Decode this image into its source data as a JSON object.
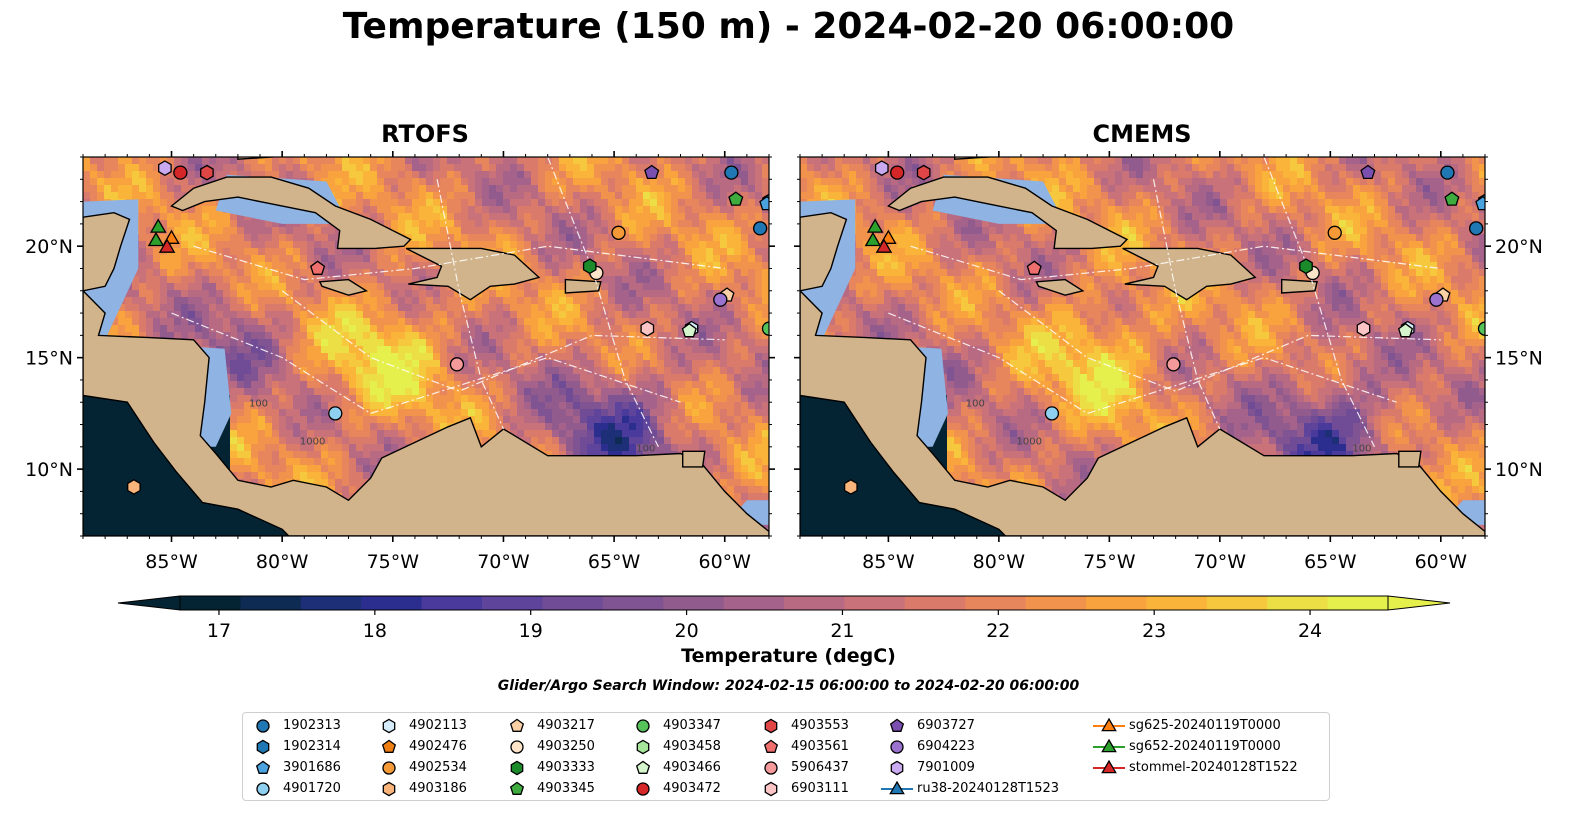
{
  "chart_data": {
    "type": "heatmap",
    "title": "Temperature (150 m) - 2024-02-20 06:00:00",
    "panels": [
      {
        "title": "RTOFS"
      },
      {
        "title": "CMEMS"
      }
    ],
    "x_ticks": [
      "85°W",
      "80°W",
      "75°W",
      "70°W",
      "65°W",
      "60°W"
    ],
    "x_tick_values": [
      -85,
      -80,
      -75,
      -70,
      -65,
      -60
    ],
    "y_ticks": [
      "20°N",
      "15°N",
      "10°N"
    ],
    "y_tick_values": [
      20,
      15,
      10
    ],
    "xlim": [
      -89,
      -58
    ],
    "ylim": [
      7,
      24
    ],
    "contour_labels": [
      "100",
      "1000",
      "100"
    ],
    "colorbar": {
      "label": "Temperature (degC)",
      "vmin": 16.75,
      "vmax": 24.5,
      "ticks": [
        17,
        18,
        19,
        20,
        21,
        22,
        23,
        24
      ],
      "colors": [
        "#052433",
        "#0e2b54",
        "#1d2f76",
        "#2b2e8e",
        "#4a3a9c",
        "#5e449a",
        "#704c96",
        "#805392",
        "#915b8e",
        "#a5628a",
        "#b86a83",
        "#c97279",
        "#d97a6b",
        "#e7855d",
        "#f2934d",
        "#f8a33e",
        "#fab43a",
        "#f6c83e",
        "#ecdf45",
        "#e6f04c"
      ],
      "extend": "both"
    },
    "search_window": "Glider/Argo Search Window: 2024-02-15 06:00:00 to 2024-02-20 06:00:00",
    "legend": [
      {
        "label": "1902313",
        "marker": "circle",
        "color": "#1f77b4"
      },
      {
        "label": "1902314",
        "marker": "hexagon",
        "color": "#1f77b4"
      },
      {
        "label": "3901686",
        "marker": "pentagon",
        "color": "#4aa3df"
      },
      {
        "label": "4901720",
        "marker": "circle",
        "color": "#8fd0f0"
      },
      {
        "label": "4902113",
        "marker": "hexagon",
        "color": "#d6ecfb"
      },
      {
        "label": "4902476",
        "marker": "pentagon",
        "color": "#f07f13"
      },
      {
        "label": "4902534",
        "marker": "circle",
        "color": "#f59a37"
      },
      {
        "label": "4903186",
        "marker": "hexagon",
        "color": "#f8b47a"
      },
      {
        "label": "4903217",
        "marker": "pentagon",
        "color": "#fbd0a5"
      },
      {
        "label": "4903250",
        "marker": "circle",
        "color": "#fde4c8"
      },
      {
        "label": "4903333",
        "marker": "hexagon",
        "color": "#1a8a2a"
      },
      {
        "label": "4903345",
        "marker": "pentagon",
        "color": "#3dab3d"
      },
      {
        "label": "4903347",
        "marker": "circle",
        "color": "#55c25a"
      },
      {
        "label": "4903458",
        "marker": "hexagon",
        "color": "#a6e69a"
      },
      {
        "label": "4903466",
        "marker": "pentagon",
        "color": "#d5f5cc"
      },
      {
        "label": "4903472",
        "marker": "circle",
        "color": "#d62728"
      },
      {
        "label": "4903553",
        "marker": "hexagon",
        "color": "#e04646"
      },
      {
        "label": "4903561",
        "marker": "pentagon",
        "color": "#ef6f6f"
      },
      {
        "label": "5906437",
        "marker": "circle",
        "color": "#f59a9a"
      },
      {
        "label": "6903111",
        "marker": "hexagon",
        "color": "#fbc5c5"
      },
      {
        "label": "6903727",
        "marker": "pentagon",
        "color": "#7b4fb0"
      },
      {
        "label": "6904223",
        "marker": "circle",
        "color": "#9b72cf"
      },
      {
        "label": "7901009",
        "marker": "hexagon",
        "color": "#c9a9ef"
      },
      {
        "label": "ru38-20240128T1523",
        "marker": "triangle-line",
        "color": "#1f77b4"
      },
      {
        "label": "sg625-20240119T0000",
        "marker": "triangle-line",
        "color": "#ff7f0e"
      },
      {
        "label": "sg652-20240119T0000",
        "marker": "triangle-line",
        "color": "#2ca02c"
      },
      {
        "label": "stommel-20240128T1522",
        "marker": "triangle-line",
        "color": "#d62728"
      }
    ],
    "floats": [
      {
        "id": "1902313",
        "lon": -59.7,
        "lat": 23.3
      },
      {
        "id": "1902313",
        "lon": -58.4,
        "lat": 20.8
      },
      {
        "id": "1902314",
        "lon": -58.0,
        "lat": 22.0
      },
      {
        "id": "3901686",
        "lon": -58.1,
        "lat": 21.9
      },
      {
        "id": "4901720",
        "lon": -77.6,
        "lat": 12.5
      },
      {
        "id": "4902113",
        "lon": -61.5,
        "lat": 16.3
      },
      {
        "id": "4902534",
        "lon": -64.8,
        "lat": 20.6
      },
      {
        "id": "4903186",
        "lon": -86.7,
        "lat": 9.2
      },
      {
        "id": "4903217",
        "lon": -59.9,
        "lat": 17.8
      },
      {
        "id": "4903250",
        "lon": -65.8,
        "lat": 18.8
      },
      {
        "id": "4903333",
        "lon": -66.1,
        "lat": 19.1
      },
      {
        "id": "4903345",
        "lon": -59.5,
        "lat": 22.1
      },
      {
        "id": "4903347",
        "lon": -58.0,
        "lat": 16.3
      },
      {
        "id": "4903466",
        "lon": -61.6,
        "lat": 16.2
      },
      {
        "id": "4903472",
        "lon": -84.6,
        "lat": 23.3
      },
      {
        "id": "4903553",
        "lon": -83.4,
        "lat": 23.3
      },
      {
        "id": "4903561",
        "lon": -78.4,
        "lat": 19.0
      },
      {
        "id": "5906437",
        "lon": -72.1,
        "lat": 14.7
      },
      {
        "id": "6903111",
        "lon": -63.5,
        "lat": 16.3
      },
      {
        "id": "6903727",
        "lon": -63.3,
        "lat": 23.3
      },
      {
        "id": "6904223",
        "lon": -60.2,
        "lat": 17.6
      },
      {
        "id": "7901009",
        "lon": -85.3,
        "lat": 23.5
      }
    ],
    "gliders": [
      {
        "id": "sg625-20240119T0000",
        "lon": -85.0,
        "lat": 20.4
      },
      {
        "id": "sg652-20240119T0000",
        "lon": -85.6,
        "lat": 20.9
      },
      {
        "id": "sg652-20240119T0000",
        "lon": -85.7,
        "lat": 20.3
      },
      {
        "id": "stommel-20240128T1522",
        "lon": -85.2,
        "lat": 20.0
      }
    ]
  }
}
